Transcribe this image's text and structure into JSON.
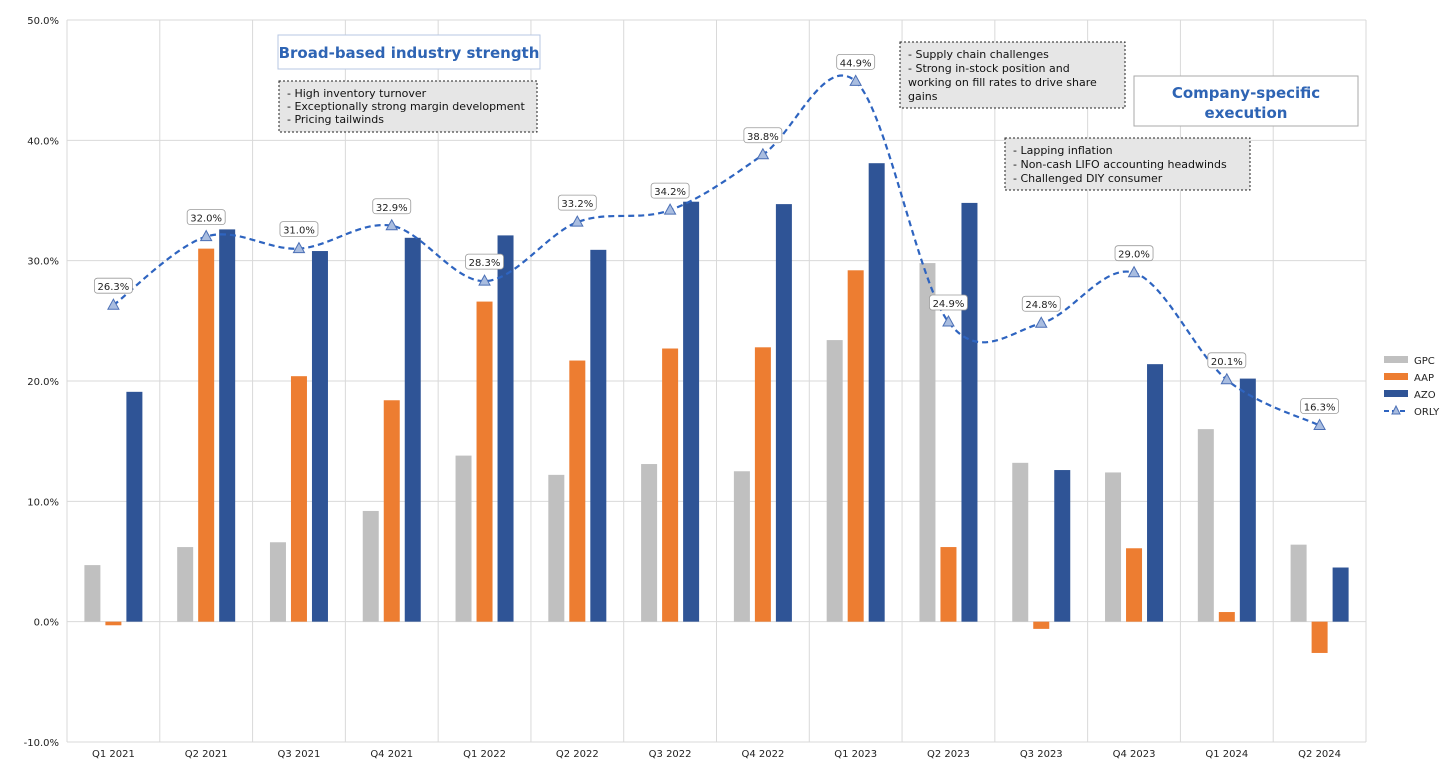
{
  "chart_data": {
    "type": "bar",
    "categories": [
      "Q1 2021",
      "Q2 2021",
      "Q3 2021",
      "Q4 2021",
      "Q1 2022",
      "Q2 2022",
      "Q3 2022",
      "Q4 2022",
      "Q1 2023",
      "Q2 2023",
      "Q3 2023",
      "Q4 2023",
      "Q1 2024",
      "Q2 2024"
    ],
    "series": [
      {
        "name": "GPC",
        "kind": "bar",
        "color": "#c0c0c0",
        "values": [
          4.7,
          6.2,
          6.6,
          9.2,
          13.8,
          12.2,
          13.1,
          12.5,
          23.4,
          29.8,
          13.2,
          12.4,
          16.0,
          6.4
        ]
      },
      {
        "name": "AAP",
        "kind": "bar",
        "color": "#ed7d31",
        "values": [
          -0.3,
          31.0,
          20.4,
          18.4,
          26.6,
          21.7,
          22.7,
          22.8,
          29.2,
          6.2,
          -0.6,
          6.1,
          0.8,
          -2.6
        ]
      },
      {
        "name": "AZO",
        "kind": "bar",
        "color": "#2f5496",
        "values": [
          19.1,
          32.6,
          30.8,
          31.9,
          32.1,
          30.9,
          34.9,
          34.7,
          38.1,
          34.8,
          12.6,
          21.4,
          20.2,
          4.5
        ]
      },
      {
        "name": "ORLY",
        "kind": "line",
        "color": "#2e64c0",
        "values": [
          26.3,
          32.0,
          31.0,
          32.9,
          28.3,
          33.2,
          34.2,
          38.8,
          44.9,
          24.9,
          24.8,
          29.0,
          20.1,
          16.3
        ],
        "labels": [
          "26.3%",
          "32.0%",
          "31.0%",
          "32.9%",
          "28.3%",
          "33.2%",
          "34.2%",
          "38.8%",
          "44.9%",
          "24.9%",
          "24.8%",
          "29.0%",
          "20.1%",
          "16.3%"
        ]
      }
    ],
    "ylim": [
      -10,
      50
    ],
    "yticks": [
      -10,
      0,
      10,
      20,
      30,
      40,
      50
    ],
    "ytick_labels": [
      "-10.0%",
      "0.0%",
      "10.0%",
      "20.0%",
      "30.0%",
      "40.0%",
      "50.0%"
    ],
    "grid": true,
    "legend": "right",
    "title": "",
    "xlabel": "",
    "ylabel": ""
  },
  "annotations": {
    "broad_title": "Broad-based industry strength",
    "broad_notes": [
      "- High inventory turnover",
      "- Exceptionally strong margin development",
      "- Pricing tailwinds"
    ],
    "company_title": [
      "Company-specific",
      "execution"
    ],
    "supply_notes": [
      "- Supply chain challenges",
      "- Strong in-stock position and",
      "working on fill rates to drive share",
      "gains"
    ],
    "lapping_notes": [
      "- Lapping inflation",
      "- Non-cash LIFO accounting headwinds",
      "- Challenged DIY consumer"
    ]
  }
}
